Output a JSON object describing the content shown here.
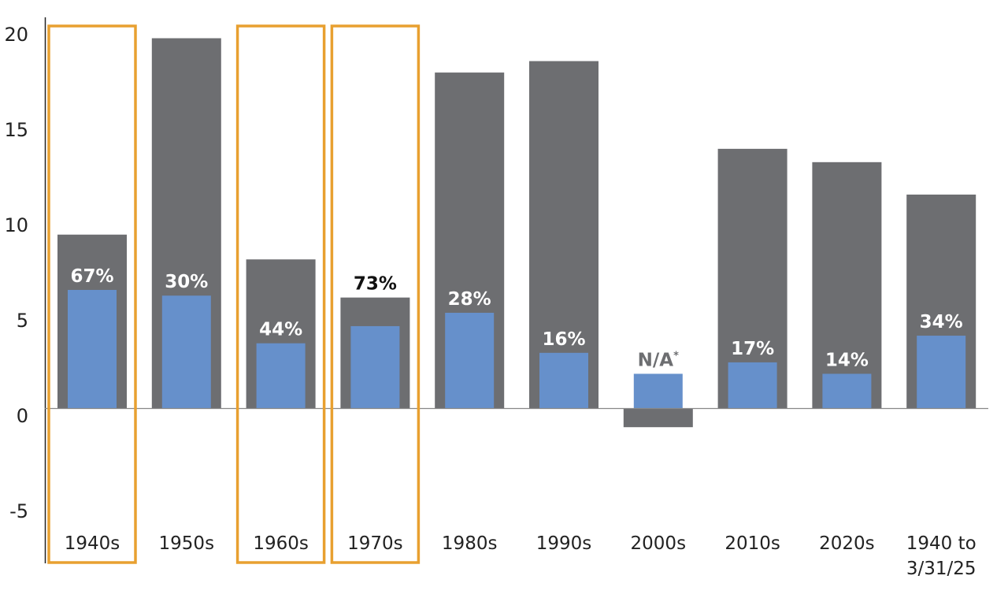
{
  "chart_data": {
    "type": "bar",
    "title": "",
    "xlabel": "",
    "ylabel": "",
    "ylim": [
      -7,
      20.5
    ],
    "yticks": [
      "20",
      "15",
      "10",
      "5",
      "0",
      "-5"
    ],
    "ytick_values": [
      20,
      15,
      10,
      5,
      0,
      -5
    ],
    "categories": [
      "1940s",
      "1950s",
      "1960s",
      "1970s",
      "1980s",
      "1990s",
      "2000s",
      "2010s",
      "2020s",
      [
        "1940 to",
        "3/31/25"
      ]
    ],
    "series": [
      {
        "name": "gray",
        "color": "#6d6e71",
        "values": [
          9.1,
          19.4,
          7.8,
          5.8,
          17.6,
          18.2,
          -1.0,
          13.6,
          12.9,
          11.2
        ]
      },
      {
        "name": "blue",
        "color": "#6690cb",
        "values": [
          6.2,
          5.9,
          3.4,
          4.3,
          5.0,
          2.9,
          1.8,
          2.4,
          1.8,
          3.8
        ]
      }
    ],
    "data_labels": [
      "67%",
      "30%",
      "44%",
      "73%",
      "28%",
      "16%",
      "N/A",
      "17%",
      "14%",
      "34%"
    ],
    "data_label_superscripts": [
      "",
      "",
      "",
      "",
      "",
      "",
      "*",
      "",
      "",
      ""
    ],
    "data_label_colors": [
      "#ffffff",
      "#ffffff",
      "#ffffff",
      "#111111",
      "#ffffff",
      "#ffffff",
      "#6d6e71",
      "#ffffff",
      "#ffffff",
      "#ffffff"
    ],
    "highlighted_categories": [
      "1940s",
      "1960s",
      "1970s"
    ],
    "highlight_color": "#e8a030",
    "grid": false,
    "legend": "none"
  }
}
